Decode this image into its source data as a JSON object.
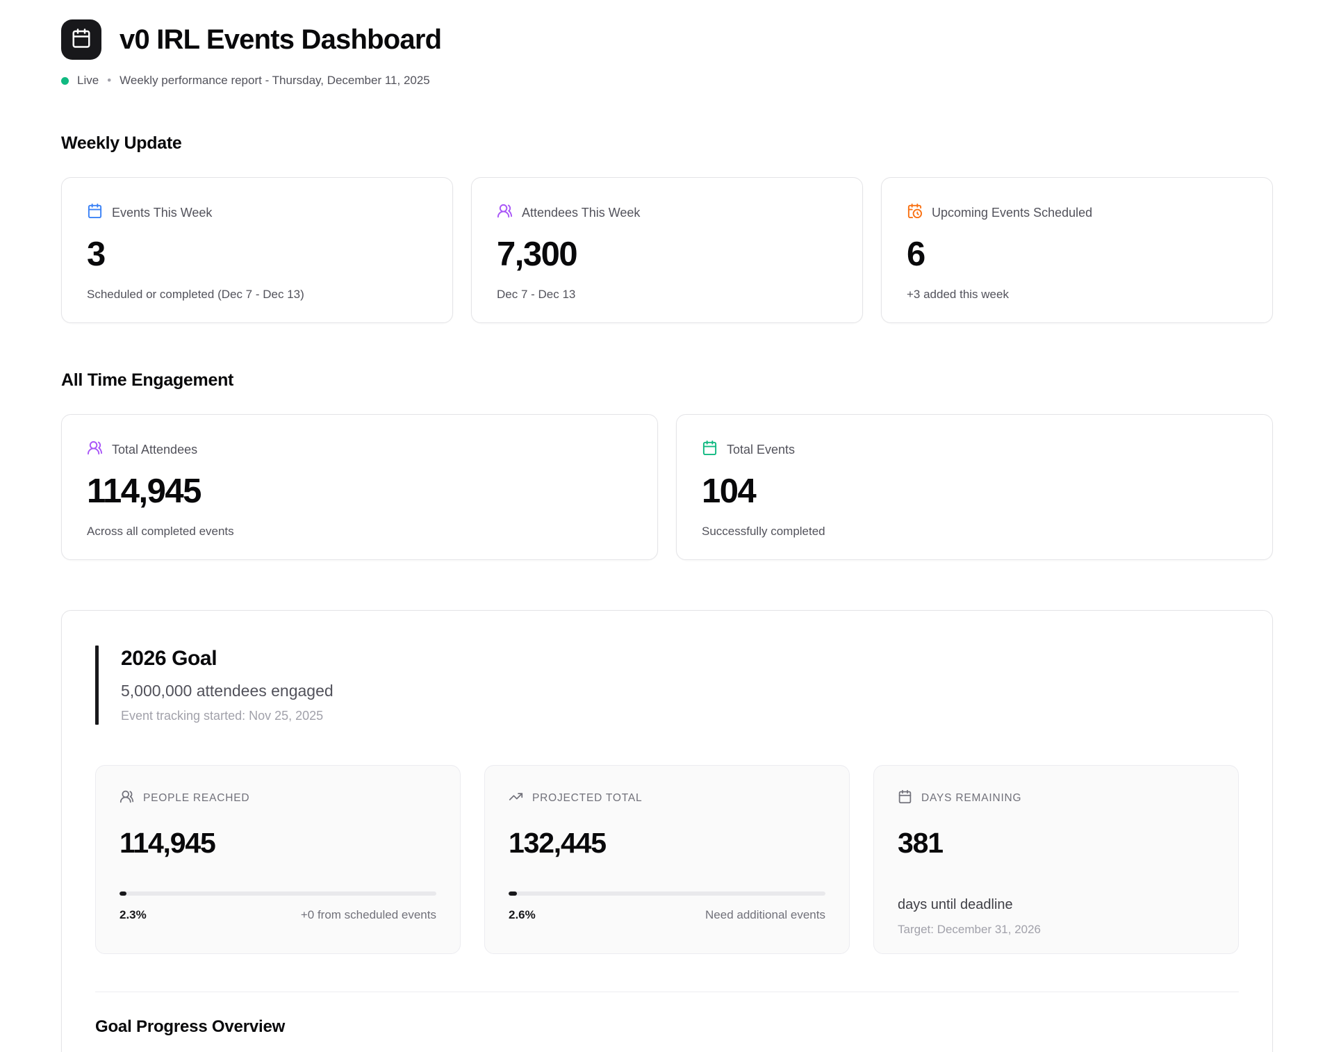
{
  "header": {
    "title": "v0 IRL Events Dashboard",
    "status_label": "Live",
    "separator": "•",
    "subtitle": "Weekly performance report - Thursday, December 11, 2025"
  },
  "weekly_update": {
    "heading": "Weekly Update",
    "cards": [
      {
        "icon": "calendar-icon",
        "icon_color": "#3b82f6",
        "label": "Events This Week",
        "value": "3",
        "subtext": "Scheduled or completed (Dec 7 - Dec 13)"
      },
      {
        "icon": "users-icon",
        "icon_color": "#a855f7",
        "label": "Attendees This Week",
        "value": "7,300",
        "subtext": "Dec 7 - Dec 13"
      },
      {
        "icon": "calendar-clock-icon",
        "icon_color": "#f97316",
        "label": "Upcoming Events Scheduled",
        "value": "6",
        "subtext": "+3 added this week"
      }
    ]
  },
  "all_time": {
    "heading": "All Time Engagement",
    "cards": [
      {
        "icon": "users-icon",
        "icon_color": "#a855f7",
        "label": "Total Attendees",
        "value": "114,945",
        "subtext": "Across all completed events"
      },
      {
        "icon": "calendar-icon",
        "icon_color": "#10b981",
        "label": "Total Events",
        "value": "104",
        "subtext": "Successfully completed"
      }
    ]
  },
  "goal": {
    "title": "2026 Goal",
    "subtitle": "5,000,000 attendees engaged",
    "note": "Event tracking started: Nov 25, 2025",
    "metrics": [
      {
        "icon": "users-icon",
        "label": "PEOPLE REACHED",
        "value": "114,945",
        "progress_pct": 2.3,
        "progress_label": "2.3%",
        "progress_note": "+0 from scheduled events"
      },
      {
        "icon": "trending-up-icon",
        "label": "PROJECTED TOTAL",
        "value": "132,445",
        "progress_pct": 2.6,
        "progress_label": "2.6%",
        "progress_note": "Need additional events"
      },
      {
        "icon": "calendar-icon",
        "label": "DAYS REMAINING",
        "value": "381",
        "subtext": "days until deadline",
        "note": "Target: December 31, 2026"
      }
    ],
    "footer_heading": "Goal Progress Overview"
  },
  "colors": {
    "live_dot": "#10b981",
    "blue_accent": "#3b82f6",
    "purple_accent": "#a855f7",
    "orange_accent": "#f97316",
    "green_accent": "#10b981",
    "progress_fill": "#18181b"
  }
}
